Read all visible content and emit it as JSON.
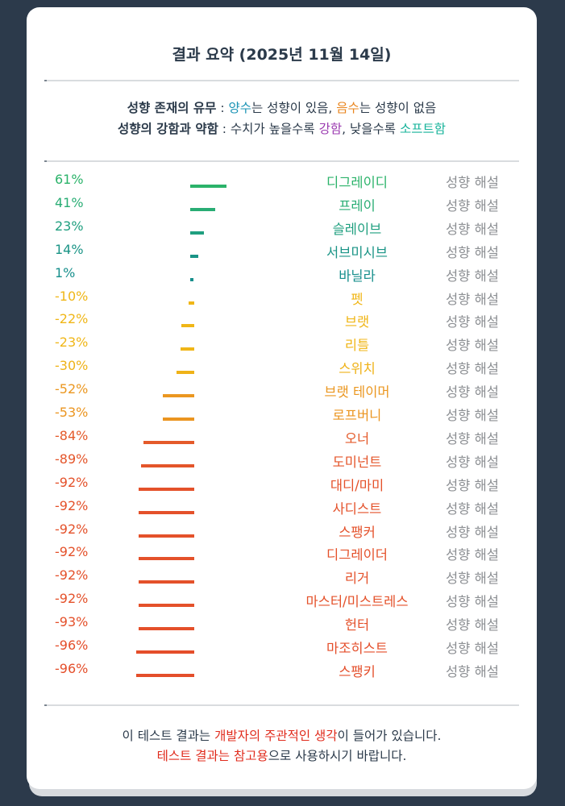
{
  "title": "결과 요약 (2025년 11월 14일)",
  "legend": {
    "line1": {
      "label": "성향 존재의 유무",
      "sep": " : ",
      "pos": "양수",
      "mid": "는 성향이 있음, ",
      "neg": "음수",
      "end": "는 성향이 없음"
    },
    "line2": {
      "label": "성향의 강함과 약함",
      "sep": " : 수치가 높을수록 ",
      "strong": "강함",
      "mid": ", 낮을수록 ",
      "soft": "소프트함"
    }
  },
  "explain_label": "성향 해설",
  "results": [
    {
      "pct": "61%",
      "value": 61,
      "name": "디그레이디",
      "color": "#2bb36a"
    },
    {
      "pct": "41%",
      "value": 41,
      "name": "프레이",
      "color": "#29ad74"
    },
    {
      "pct": "23%",
      "value": 23,
      "name": "슬레이브",
      "color": "#1f9f7f"
    },
    {
      "pct": "14%",
      "value": 14,
      "name": "서브미시브",
      "color": "#1a9486"
    },
    {
      "pct": "1%",
      "value": 1,
      "name": "바닐라",
      "color": "#178f8c"
    },
    {
      "pct": "-10%",
      "value": -10,
      "name": "펫",
      "color": "#f0b617"
    },
    {
      "pct": "-22%",
      "value": -22,
      "name": "브랫",
      "color": "#f0b617"
    },
    {
      "pct": "-23%",
      "value": -23,
      "name": "리틀",
      "color": "#f0b617"
    },
    {
      "pct": "-30%",
      "value": -30,
      "name": "스위치",
      "color": "#efb218"
    },
    {
      "pct": "-52%",
      "value": -52,
      "name": "브랫 테이머",
      "color": "#eb9720"
    },
    {
      "pct": "-53%",
      "value": -53,
      "name": "로프버니",
      "color": "#eb9520"
    },
    {
      "pct": "-84%",
      "value": -84,
      "name": "오너",
      "color": "#e45a2a"
    },
    {
      "pct": "-89%",
      "value": -89,
      "name": "도미넌트",
      "color": "#e4552a"
    },
    {
      "pct": "-92%",
      "value": -92,
      "name": "대디/마미",
      "color": "#e4512a"
    },
    {
      "pct": "-92%",
      "value": -92,
      "name": "사디스트",
      "color": "#e4512a"
    },
    {
      "pct": "-92%",
      "value": -92,
      "name": "스팽커",
      "color": "#e4512a"
    },
    {
      "pct": "-92%",
      "value": -92,
      "name": "디그레이더",
      "color": "#e4512a"
    },
    {
      "pct": "-92%",
      "value": -92,
      "name": "리거",
      "color": "#e4512a"
    },
    {
      "pct": "-92%",
      "value": -92,
      "name": "마스터/미스트레스",
      "color": "#e4512a"
    },
    {
      "pct": "-93%",
      "value": -93,
      "name": "헌터",
      "color": "#e4502a"
    },
    {
      "pct": "-96%",
      "value": -96,
      "name": "마조히스트",
      "color": "#e44e2a"
    },
    {
      "pct": "-96%",
      "value": -96,
      "name": "스팽키",
      "color": "#e44e2a"
    }
  ],
  "footer": {
    "line1_a": "이 테스트 결과는 ",
    "line1_red": "개발자의 주관적인 생각",
    "line1_b": "이 들어가 있습니다.",
    "line2_red": "테스트 결과는 참고용",
    "line2_b": "으로 사용하시기 바랍니다."
  }
}
